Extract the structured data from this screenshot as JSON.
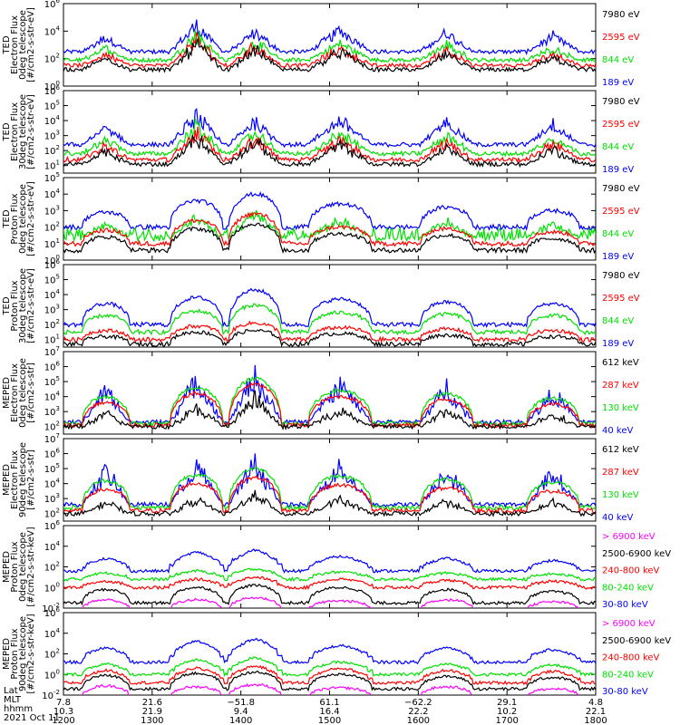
{
  "colors": {
    "black": "#000000",
    "red": "#ff0000",
    "green": "#00e000",
    "blue": "#0000ff",
    "magenta": "#ff00ff"
  },
  "chart_data": [
    {
      "type": "line",
      "ylabel": [
        "TED",
        "Electron Flux",
        "0deg telescope",
        "[#/cm2-s-str-eV]"
      ],
      "y_ticks": [
        {
          "b": "10",
          "e": "0"
        },
        {
          "b": "10",
          "e": "2"
        },
        {
          "b": "10",
          "e": "4"
        },
        {
          "b": "10",
          "e": "6"
        }
      ],
      "log_y": true,
      "ylim": [
        0,
        6
      ],
      "series": [
        {
          "name": "7980 eV",
          "color": "#000000",
          "pattern": "spiky",
          "base": 1.2,
          "peaks": [
            2.1,
            3.2,
            2.8,
            2.6,
            2.4,
            2.1
          ]
        },
        {
          "name": "2595 eV",
          "color": "#ff0000",
          "pattern": "spiky",
          "base": 1.5,
          "peaks": [
            2.4,
            3.5,
            3.0,
            2.8,
            2.7,
            2.4
          ]
        },
        {
          "name": "844 eV",
          "color": "#00e000",
          "pattern": "spiky",
          "base": 1.9,
          "peaks": [
            2.8,
            3.9,
            3.3,
            3.2,
            3.1,
            2.8
          ]
        },
        {
          "name": "189 eV",
          "color": "#0000ff",
          "pattern": "spiky",
          "base": 2.5,
          "peaks": [
            3.6,
            4.6,
            4.0,
            4.2,
            4.0,
            3.7
          ]
        }
      ]
    },
    {
      "type": "line",
      "ylabel": [
        "TED",
        "Electron Flux",
        "30deg telescope",
        "[#/cm2-s-str-eV]"
      ],
      "y_ticks": [
        {
          "b": "10",
          "e": "1"
        },
        {
          "b": "10",
          "e": "2"
        },
        {
          "b": "10",
          "e": "3"
        },
        {
          "b": "10",
          "e": "4"
        },
        {
          "b": "10",
          "e": "5"
        },
        {
          "b": "10",
          "e": "6"
        }
      ],
      "log_y": true,
      "ylim": [
        0.5,
        6
      ],
      "series": [
        {
          "name": "7980 eV",
          "color": "#000000",
          "pattern": "spiky",
          "base": 1.1,
          "peaks": [
            2.0,
            3.0,
            2.7,
            2.5,
            2.3,
            2.2
          ]
        },
        {
          "name": "2595 eV",
          "color": "#ff0000",
          "pattern": "spiky",
          "base": 1.4,
          "peaks": [
            2.4,
            3.4,
            2.9,
            2.8,
            2.7,
            2.6
          ]
        },
        {
          "name": "844 eV",
          "color": "#00e000",
          "pattern": "spiky",
          "base": 1.8,
          "peaks": [
            2.8,
            3.8,
            3.3,
            3.2,
            3.1,
            3.0
          ]
        },
        {
          "name": "189 eV",
          "color": "#0000ff",
          "pattern": "spiky",
          "base": 2.4,
          "peaks": [
            3.6,
            4.5,
            4.1,
            4.2,
            4.1,
            3.9
          ]
        }
      ]
    },
    {
      "type": "line",
      "ylabel": [
        "TED",
        "Proton Flux",
        "0deg telescope",
        "[#/cm2-s-str-eV]"
      ],
      "y_ticks": [
        {
          "b": "10",
          "e": "0"
        },
        {
          "b": "10",
          "e": "1"
        },
        {
          "b": "10",
          "e": "2"
        },
        {
          "b": "10",
          "e": "3"
        },
        {
          "b": "10",
          "e": "4"
        },
        {
          "b": "10",
          "e": "5"
        }
      ],
      "log_y": true,
      "ylim": [
        0,
        5
      ],
      "series": [
        {
          "name": "7980 eV",
          "color": "#000000",
          "pattern": "dome",
          "base": 0.6,
          "peaks": [
            1.4,
            1.9,
            2.2,
            1.6,
            1.5,
            1.3
          ]
        },
        {
          "name": "2595 eV",
          "color": "#ff0000",
          "pattern": "dome",
          "base": 1.0,
          "peaks": [
            1.8,
            2.4,
            2.8,
            2.0,
            1.9,
            1.7
          ]
        },
        {
          "name": "844 eV",
          "color": "#00e000",
          "pattern": "noisy",
          "base": 1.4,
          "peaks": [
            2.2,
            2.6,
            3.0,
            2.5,
            2.4,
            2.2
          ]
        },
        {
          "name": "189 eV",
          "color": "#0000ff",
          "pattern": "dome",
          "base": 2.0,
          "peaks": [
            2.9,
            3.6,
            4.0,
            3.4,
            3.2,
            3.0
          ]
        }
      ]
    },
    {
      "type": "line",
      "ylabel": [
        "TED",
        "Proton Flux",
        "30deg telescope",
        "[#/cm2-s-str-eV]"
      ],
      "y_ticks": [
        {
          "b": "10",
          "e": "1"
        },
        {
          "b": "10",
          "e": "2"
        },
        {
          "b": "10",
          "e": "3"
        },
        {
          "b": "10",
          "e": "4"
        },
        {
          "b": "10",
          "e": "5"
        },
        {
          "b": "10",
          "e": "6"
        }
      ],
      "log_y": true,
      "ylim": [
        0.5,
        6
      ],
      "series": [
        {
          "name": "7980 eV",
          "color": "#000000",
          "pattern": "dome",
          "base": 0.7,
          "peaks": [
            1.2,
            1.5,
            1.6,
            1.4,
            1.3,
            1.2
          ]
        },
        {
          "name": "2595 eV",
          "color": "#ff0000",
          "pattern": "dome",
          "base": 1.0,
          "peaks": [
            1.6,
            1.9,
            2.1,
            1.8,
            1.7,
            1.6
          ]
        },
        {
          "name": "844 eV",
          "color": "#00e000",
          "pattern": "dome",
          "base": 1.5,
          "peaks": [
            2.6,
            2.9,
            3.3,
            2.8,
            2.7,
            2.6
          ]
        },
        {
          "name": "189 eV",
          "color": "#0000ff",
          "pattern": "dome",
          "base": 2.0,
          "peaks": [
            3.4,
            3.8,
            4.3,
            3.7,
            3.5,
            3.4
          ]
        }
      ]
    },
    {
      "type": "line",
      "ylabel": [
        "MEPED",
        "Electron Flux",
        "0deg telescope",
        "[#/cm2-s-str]"
      ],
      "y_ticks": [
        {
          "b": "10",
          "e": "2"
        },
        {
          "b": "10",
          "e": "3"
        },
        {
          "b": "10",
          "e": "4"
        },
        {
          "b": "10",
          "e": "5"
        },
        {
          "b": "10",
          "e": "6"
        },
        {
          "b": "10",
          "e": "7"
        }
      ],
      "log_y": true,
      "ylim": [
        1.5,
        7
      ],
      "series": [
        {
          "name": "612 keV",
          "color": "#000000",
          "pattern": "spiky",
          "base": 2.0,
          "peaks": [
            3.0,
            3.4,
            4.0,
            3.2,
            3.1,
            2.9
          ]
        },
        {
          "name": "287 keV",
          "color": "#ff0000",
          "pattern": "dome",
          "base": 2.1,
          "peaks": [
            3.6,
            4.2,
            4.8,
            4.0,
            3.8,
            3.5
          ]
        },
        {
          "name": "130 keV",
          "color": "#00e000",
          "pattern": "dome",
          "base": 2.2,
          "peaks": [
            4.0,
            4.6,
            5.2,
            4.4,
            4.2,
            3.9
          ]
        },
        {
          "name": "40 keV",
          "color": "#0000ff",
          "pattern": "spiky",
          "base": 2.3,
          "peaks": [
            4.6,
            5.3,
            5.6,
            5.0,
            4.8,
            4.4
          ]
        }
      ]
    },
    {
      "type": "line",
      "ylabel": [
        "MEPED",
        "Electron Flux",
        "90deg telescope",
        "[#/cm2-s-str]"
      ],
      "y_ticks": [
        {
          "b": "10",
          "e": "2"
        },
        {
          "b": "10",
          "e": "3"
        },
        {
          "b": "10",
          "e": "4"
        },
        {
          "b": "10",
          "e": "5"
        },
        {
          "b": "10",
          "e": "6"
        },
        {
          "b": "10",
          "e": "7"
        }
      ],
      "log_y": true,
      "ylim": [
        1.5,
        7
      ],
      "series": [
        {
          "name": "612 keV",
          "color": "#000000",
          "pattern": "spiky",
          "base": 2.0,
          "peaks": [
            2.8,
            3.0,
            3.4,
            3.0,
            2.9,
            2.8
          ]
        },
        {
          "name": "287 keV",
          "color": "#ff0000",
          "pattern": "dome",
          "base": 2.2,
          "peaks": [
            3.6,
            4.0,
            4.4,
            3.9,
            3.7,
            3.5
          ]
        },
        {
          "name": "130 keV",
          "color": "#00e000",
          "pattern": "dome",
          "base": 2.4,
          "peaks": [
            4.2,
            4.6,
            5.0,
            4.5,
            4.3,
            4.1
          ]
        },
        {
          "name": "40 keV",
          "color": "#0000ff",
          "pattern": "spiky",
          "base": 2.6,
          "peaks": [
            5.0,
            5.4,
            5.6,
            5.3,
            5.1,
            4.9
          ]
        }
      ]
    },
    {
      "type": "line",
      "ylabel": [
        "MEPED",
        "Proton Flux",
        "0deg telescope",
        "[#/cm2-s-str-keV]"
      ],
      "y_ticks": [
        {
          "b": "10",
          "e": "-2"
        },
        {
          "b": "10",
          "e": "0"
        },
        {
          "b": "10",
          "e": "2"
        },
        {
          "b": "10",
          "e": "4"
        },
        {
          "b": "10",
          "e": "6"
        }
      ],
      "log_y": true,
      "ylim": [
        -2,
        6
      ],
      "series": [
        {
          "name": "> 6900 keV",
          "color": "#ff00ff",
          "pattern": "dome",
          "base": -2.2,
          "peaks": [
            -1.2,
            -1.2,
            -1.0,
            -1.3,
            -1.2,
            -1.4
          ]
        },
        {
          "name": "2500-6900 keV",
          "color": "#000000",
          "pattern": "dome",
          "base": -1.5,
          "peaks": [
            -0.2,
            0.0,
            0.2,
            0.0,
            -0.2,
            -0.4
          ]
        },
        {
          "name": "240-800 keV",
          "color": "#ff0000",
          "pattern": "flat",
          "base": 0.0,
          "peaks": [
            0.6,
            0.8,
            1.0,
            0.8,
            0.7,
            0.6
          ]
        },
        {
          "name": "80-240 keV",
          "color": "#00e000",
          "pattern": "flat",
          "base": 0.8,
          "peaks": [
            1.4,
            1.6,
            1.8,
            1.5,
            1.4,
            1.3
          ]
        },
        {
          "name": "30-80 keV",
          "color": "#0000ff",
          "pattern": "flat",
          "base": 1.6,
          "peaks": [
            2.8,
            3.4,
            3.6,
            3.0,
            2.8,
            2.6
          ]
        }
      ]
    },
    {
      "type": "line",
      "ylabel": [
        "MEPED",
        "Proton Flux",
        "90deg telescope",
        "[#/cm2-s-str-keV]"
      ],
      "y_ticks": [
        {
          "b": "10",
          "e": "-2"
        },
        {
          "b": "10",
          "e": "0"
        },
        {
          "b": "10",
          "e": "2"
        },
        {
          "b": "10",
          "e": "4"
        },
        {
          "b": "10",
          "e": "6"
        }
      ],
      "log_y": true,
      "ylim": [
        -2,
        6
      ],
      "series": [
        {
          "name": "> 6900 keV",
          "color": "#ff00ff",
          "pattern": "dome",
          "base": -2.2,
          "peaks": [
            -1.1,
            -1.2,
            -1.0,
            -1.3,
            -1.2,
            -1.4
          ]
        },
        {
          "name": "2500-6900 keV",
          "color": "#000000",
          "pattern": "dome",
          "base": -1.4,
          "peaks": [
            -0.1,
            0.1,
            0.2,
            0.0,
            -0.2,
            -0.3
          ]
        },
        {
          "name": "240-800 keV",
          "color": "#ff0000",
          "pattern": "flat",
          "base": -0.8,
          "peaks": [
            0.4,
            0.6,
            0.8,
            0.6,
            0.4,
            0.3
          ]
        },
        {
          "name": "80-240 keV",
          "color": "#00e000",
          "pattern": "flat",
          "base": 0.0,
          "peaks": [
            1.0,
            1.4,
            1.6,
            1.2,
            1.0,
            0.9
          ]
        },
        {
          "name": "30-80 keV",
          "color": "#0000ff",
          "pattern": "flat",
          "base": 1.2,
          "peaks": [
            2.6,
            3.2,
            3.4,
            2.8,
            2.6,
            2.4
          ]
        }
      ]
    }
  ],
  "x_axis": {
    "row_labels": [
      "Lat",
      "MLT",
      "hhmm"
    ],
    "ticks": [
      {
        "hhmm": "1200",
        "lat": "7.8",
        "mlt": "10.3"
      },
      {
        "hhmm": "1300",
        "lat": "21.6",
        "mlt": "21.9"
      },
      {
        "hhmm": "1400",
        "lat": "−51.8",
        "mlt": "9.4"
      },
      {
        "hhmm": "1500",
        "lat": "61.1",
        "mlt": "16.4"
      },
      {
        "hhmm": "1600",
        "lat": "−62.2",
        "mlt": "22.2"
      },
      {
        "hhmm": "1700",
        "lat": "29.1",
        "mlt": "10.2"
      },
      {
        "hhmm": "1800",
        "lat": "4.8",
        "mlt": "22.1"
      }
    ],
    "date": "2021 Oct 11"
  }
}
